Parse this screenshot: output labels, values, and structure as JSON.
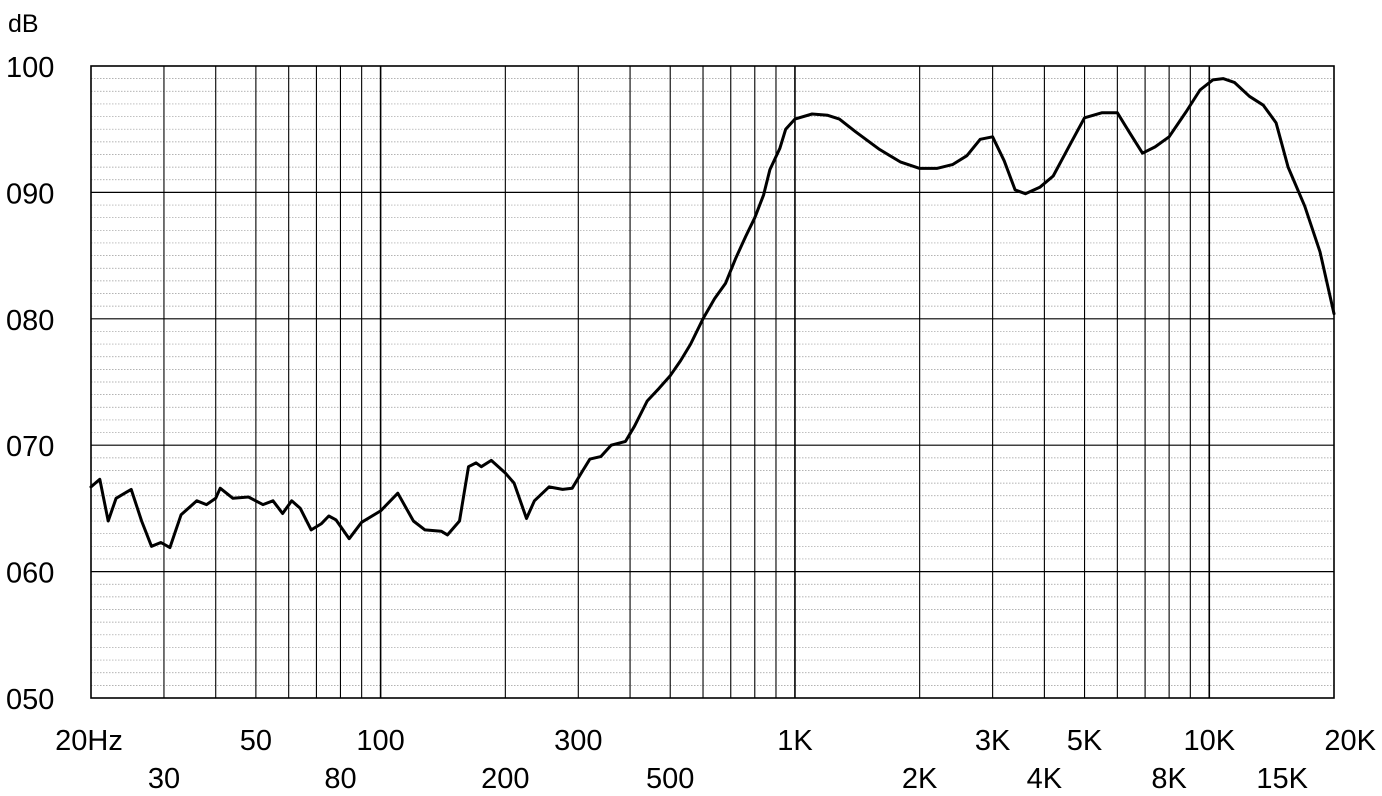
{
  "chart_data": {
    "type": "line",
    "title": "",
    "xlabel": "",
    "ylabel": "dB",
    "x_scale": "log",
    "xlim": [
      20,
      20000
    ],
    "ylim": [
      50,
      100
    ],
    "grid": true,
    "y_ticks": [
      {
        "value": 100,
        "label": "100"
      },
      {
        "value": 90,
        "label": "090"
      },
      {
        "value": 80,
        "label": "080"
      },
      {
        "value": 70,
        "label": "070"
      },
      {
        "value": 60,
        "label": "060"
      },
      {
        "value": 50,
        "label": "050"
      }
    ],
    "x_ticks_upper": [
      {
        "value": 20,
        "label": "20Hz"
      },
      {
        "value": 50,
        "label": "50"
      },
      {
        "value": 100,
        "label": "100"
      },
      {
        "value": 300,
        "label": "300"
      },
      {
        "value": 1000,
        "label": "1K"
      },
      {
        "value": 3000,
        "label": "3K"
      },
      {
        "value": 5000,
        "label": "5K"
      },
      {
        "value": 10000,
        "label": "10K"
      },
      {
        "value": 20000,
        "label": "20K"
      }
    ],
    "x_ticks_lower": [
      {
        "value": 30,
        "label": "30"
      },
      {
        "value": 80,
        "label": "80"
      },
      {
        "value": 200,
        "label": "200"
      },
      {
        "value": 500,
        "label": "500"
      },
      {
        "value": 2000,
        "label": "2K"
      },
      {
        "value": 4000,
        "label": "4K"
      },
      {
        "value": 8000,
        "label": "8K"
      },
      {
        "value": 15000,
        "label": "15K"
      }
    ],
    "series": [
      {
        "color": "#000000",
        "points": [
          [
            20,
            66.7
          ],
          [
            21,
            67.3
          ],
          [
            22,
            64
          ],
          [
            23,
            65.8
          ],
          [
            25,
            66.5
          ],
          [
            26.5,
            64
          ],
          [
            28,
            62
          ],
          [
            29.5,
            62.3
          ],
          [
            31,
            61.9
          ],
          [
            33,
            64.5
          ],
          [
            36,
            65.6
          ],
          [
            38,
            65.3
          ],
          [
            40,
            65.8
          ],
          [
            41,
            66.6
          ],
          [
            44,
            65.8
          ],
          [
            48,
            65.9
          ],
          [
            52,
            65.3
          ],
          [
            55,
            65.6
          ],
          [
            58,
            64.6
          ],
          [
            61,
            65.6
          ],
          [
            64,
            65
          ],
          [
            68,
            63.3
          ],
          [
            72,
            63.8
          ],
          [
            75,
            64.4
          ],
          [
            78,
            64.1
          ],
          [
            84,
            62.6
          ],
          [
            90,
            63.9
          ],
          [
            100,
            64.8
          ],
          [
            110,
            66.2
          ],
          [
            120,
            64
          ],
          [
            128,
            63.3
          ],
          [
            140,
            63.2
          ],
          [
            145,
            62.9
          ],
          [
            155,
            64
          ],
          [
            163,
            68.3
          ],
          [
            170,
            68.6
          ],
          [
            175,
            68.3
          ],
          [
            185,
            68.8
          ],
          [
            200,
            67.8
          ],
          [
            210,
            67
          ],
          [
            225,
            64.2
          ],
          [
            235,
            65.6
          ],
          [
            255,
            66.7
          ],
          [
            275,
            66.5
          ],
          [
            290,
            66.6
          ],
          [
            305,
            67.8
          ],
          [
            320,
            68.9
          ],
          [
            340,
            69.1
          ],
          [
            360,
            70
          ],
          [
            390,
            70.3
          ],
          [
            410,
            71.5
          ],
          [
            440,
            73.5
          ],
          [
            470,
            74.5
          ],
          [
            500,
            75.5
          ],
          [
            530,
            76.7
          ],
          [
            560,
            78
          ],
          [
            600,
            80
          ],
          [
            640,
            81.6
          ],
          [
            680,
            82.8
          ],
          [
            720,
            84.8
          ],
          [
            760,
            86.5
          ],
          [
            800,
            88
          ],
          [
            840,
            89.8
          ],
          [
            870,
            91.8
          ],
          [
            920,
            93.5
          ],
          [
            950,
            95
          ],
          [
            1000,
            95.8
          ],
          [
            1100,
            96.2
          ],
          [
            1200,
            96.1
          ],
          [
            1280,
            95.8
          ],
          [
            1400,
            94.8
          ],
          [
            1600,
            93.4
          ],
          [
            1800,
            92.4
          ],
          [
            2000,
            91.9
          ],
          [
            2200,
            91.9
          ],
          [
            2400,
            92.2
          ],
          [
            2600,
            92.9
          ],
          [
            2800,
            94.2
          ],
          [
            3000,
            94.4
          ],
          [
            3200,
            92.5
          ],
          [
            3400,
            90.2
          ],
          [
            3600,
            89.9
          ],
          [
            3900,
            90.4
          ],
          [
            4200,
            91.3
          ],
          [
            4600,
            93.7
          ],
          [
            5000,
            95.9
          ],
          [
            5500,
            96.3
          ],
          [
            6000,
            96.3
          ],
          [
            6400,
            94.8
          ],
          [
            6900,
            93.1
          ],
          [
            7400,
            93.6
          ],
          [
            8000,
            94.4
          ],
          [
            8800,
            96.4
          ],
          [
            9500,
            98.1
          ],
          [
            10200,
            98.9
          ],
          [
            10800,
            99
          ],
          [
            11500,
            98.7
          ],
          [
            12500,
            97.6
          ],
          [
            13500,
            96.9
          ],
          [
            14500,
            95.5
          ],
          [
            15500,
            92
          ],
          [
            17000,
            88.9
          ],
          [
            18500,
            85.3
          ],
          [
            20000,
            80.4
          ]
        ]
      }
    ]
  }
}
